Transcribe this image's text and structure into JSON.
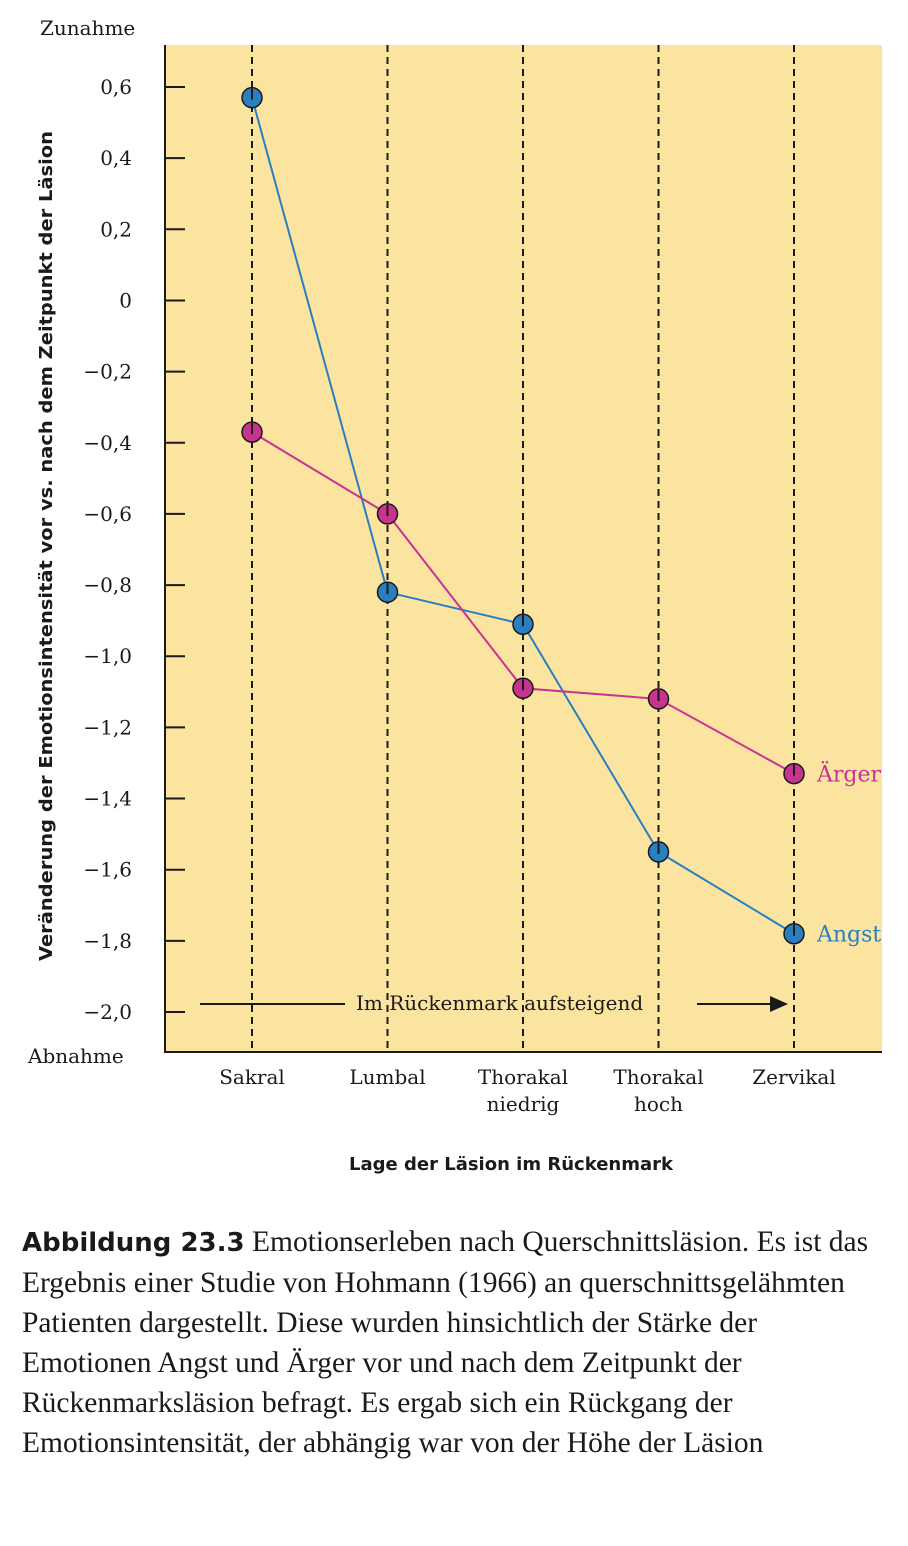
{
  "chart_data": {
    "type": "line",
    "ylabel": "Veränderung der Emotionsintensität vor vs. nach dem Zeitpunkt der Läsion",
    "xlabel": "Lage der Läsion im Rückenmark",
    "y_top_word": "Zunahme",
    "y_bottom_word": "Abnahme",
    "ylim": [
      -2.0,
      0.6
    ],
    "yticks": [
      0.6,
      0.4,
      0.2,
      0,
      -0.2,
      -0.4,
      -0.6,
      -0.8,
      -1.0,
      -1.2,
      -1.4,
      -1.6,
      -1.8,
      -2.0
    ],
    "ytick_labels": [
      "0,6",
      "0,4",
      "0,2",
      "0",
      "−0,2",
      "−0,4",
      "−0,6",
      "−0,8",
      "−1,0",
      "−1,2",
      "−1,4",
      "−1,6",
      "−1,8",
      "−2,0"
    ],
    "categories": [
      {
        "lines": [
          "Sakral"
        ]
      },
      {
        "lines": [
          "Lumbal"
        ]
      },
      {
        "lines": [
          "Thorakal",
          "niedrig"
        ]
      },
      {
        "lines": [
          "Thorakal",
          "hoch"
        ]
      },
      {
        "lines": [
          "Zervikal"
        ]
      }
    ],
    "series": [
      {
        "name": "Angst",
        "color": "#2a7fc0",
        "values": [
          0.57,
          -0.82,
          -0.91,
          -1.55,
          -1.78
        ]
      },
      {
        "name": "Ärger",
        "color": "#c8338f",
        "values": [
          -0.37,
          -0.6,
          -1.09,
          -1.12,
          -1.33
        ]
      }
    ],
    "annotation": "Im Rückenmark aufsteigend",
    "background_color": "#fbe3a0"
  },
  "caption": {
    "label": "Abbildung 23.3",
    "text": " Emotionserleben nach Querschnittsläsion. Es ist das Ergebnis einer Studie von Hohmann (1966) an querschnittsgelähmten Patienten dargestellt. Diese wurden hinsichtlich der Stärke der Emotionen Angst und Ärger vor und nach dem Zeitpunkt der Rückenmarksläsion befragt. Es ergab sich ein Rückgang der Emotionsintensität, der abhängig war von der Höhe der Läsion"
  }
}
